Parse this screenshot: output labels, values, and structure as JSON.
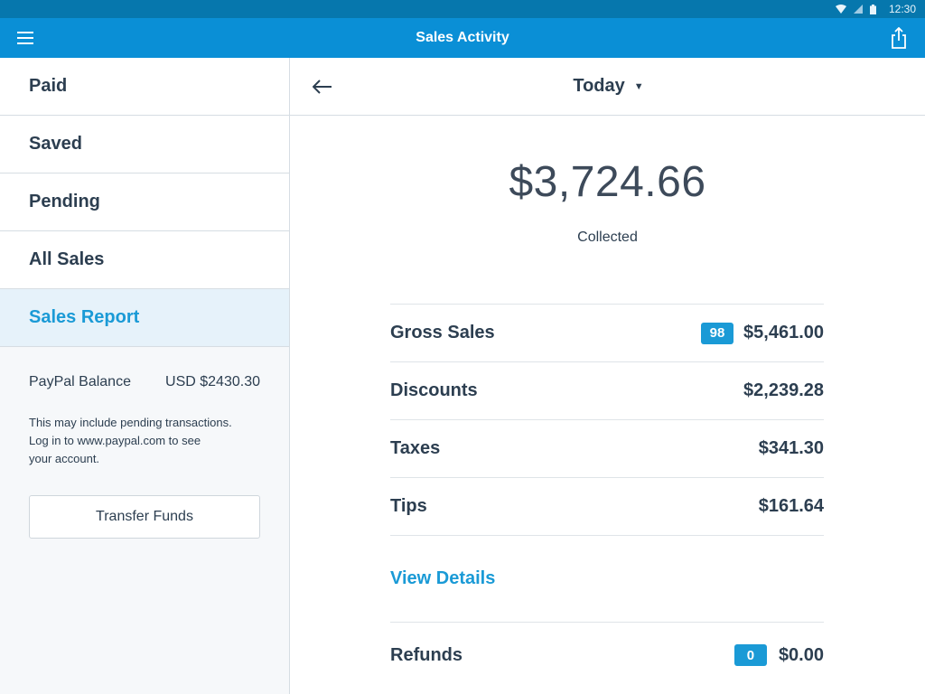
{
  "status_bar": {
    "time": "12:30",
    "icons": [
      "wifi-icon",
      "signal-icon",
      "battery-icon"
    ]
  },
  "app_bar": {
    "title": "Sales Activity",
    "menu_icon": "hamburger-menu-icon",
    "share_icon": "share-icon",
    "color": "#0a8fd6"
  },
  "sidebar": {
    "items": [
      {
        "label": "Paid"
      },
      {
        "label": "Saved"
      },
      {
        "label": "Pending"
      },
      {
        "label": "All Sales"
      },
      {
        "label": "Sales Report",
        "active": true
      }
    ],
    "balance_label": "PayPal Balance",
    "balance_value": "USD $2430.30",
    "note": "This may include pending transactions.\nLog in to www.paypal.com to see\nyour account.",
    "transfer_button": "Transfer Funds"
  },
  "main": {
    "back_icon": "arrow-left-icon",
    "period": "Today",
    "total": "$3,724.66",
    "total_label": "Collected",
    "rows": [
      {
        "label": "Gross Sales",
        "badge": "98",
        "amount": "$5,461.00"
      },
      {
        "label": "Discounts",
        "amount": "$2,239.28"
      },
      {
        "label": "Taxes",
        "amount": "$341.30"
      },
      {
        "label": "Tips",
        "amount": "$161.64"
      }
    ],
    "view_details": "View Details",
    "refunds": {
      "label": "Refunds",
      "badge": "0",
      "amount": "$0.00"
    }
  },
  "colors": {
    "accent": "#1a9ad6",
    "text": "#2c3e50",
    "active_bg": "#e6f2fa"
  }
}
